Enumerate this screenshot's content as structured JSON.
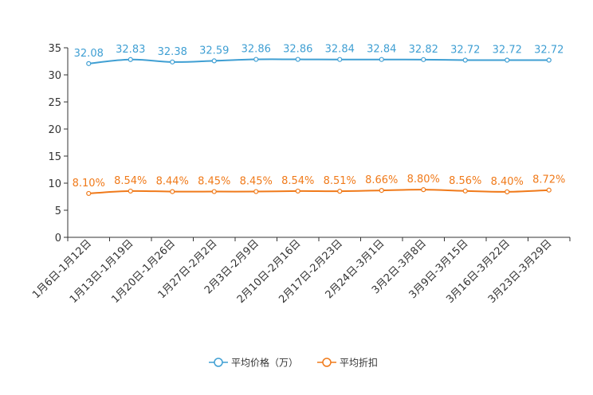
{
  "chart_data": {
    "type": "line",
    "categories": [
      "1月6日-1月12日",
      "1月13日-1月19日",
      "1月20日-1月26日",
      "1月27日-2月2日",
      "2月3日-2月9日",
      "2月10日-2月16日",
      "2月17日-2月23日",
      "2月24日-3月1日",
      "3月2日-3月8日",
      "3月9日-3月15日",
      "3月16日-3月22日",
      "3月23日-3月29日"
    ],
    "series": [
      {
        "name": "平均价格（万）",
        "color": "#3f9fd3",
        "values": [
          32.08,
          32.83,
          32.38,
          32.59,
          32.86,
          32.86,
          32.84,
          32.84,
          32.82,
          32.72,
          32.72,
          32.72
        ],
        "labels": [
          "32.08",
          "32.83",
          "32.38",
          "32.59",
          "32.86",
          "32.86",
          "32.84",
          "32.84",
          "32.82",
          "32.72",
          "32.72",
          "32.72"
        ]
      },
      {
        "name": "平均折扣",
        "color": "#f07a1a",
        "values": [
          8.1,
          8.54,
          8.44,
          8.45,
          8.45,
          8.54,
          8.51,
          8.66,
          8.8,
          8.56,
          8.4,
          8.72
        ],
        "labels": [
          "8.10%",
          "8.54%",
          "8.44%",
          "8.45%",
          "8.45%",
          "8.54%",
          "8.51%",
          "8.66%",
          "8.80%",
          "8.56%",
          "8.40%",
          "8.72%"
        ]
      }
    ],
    "y_ticks": [
      "0",
      "5",
      "10",
      "15",
      "20",
      "25",
      "30",
      "35"
    ],
    "ylim": [
      0,
      35
    ],
    "title": "",
    "xlabel": "",
    "ylabel": "",
    "legend_position": "bottom-center"
  }
}
